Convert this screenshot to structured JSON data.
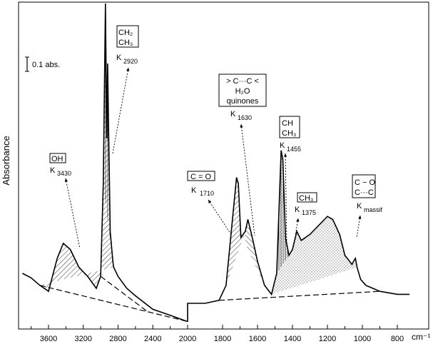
{
  "chart_data": {
    "type": "line",
    "title": "",
    "xlabel": "cm⁻¹",
    "ylabel": "Absorbance",
    "xlim": [
      3900,
      700
    ],
    "x_reversed": true,
    "x_ticks": [
      3600,
      3200,
      2800,
      2400,
      2000,
      1800,
      1600,
      1400,
      1200,
      1000,
      800
    ],
    "x_break_at": 2000,
    "scale_bar": "0.1 abs.",
    "spectrum": {
      "x": [
        3900,
        3800,
        3700,
        3600,
        3500,
        3430,
        3350,
        3250,
        3150,
        3050,
        3000,
        2970,
        2945,
        2930,
        2920,
        2910,
        2890,
        2860,
        2850,
        2800,
        2700,
        2600,
        2400,
        2200,
        2010,
        2000,
        1900,
        1820,
        1780,
        1740,
        1720,
        1710,
        1695,
        1670,
        1655,
        1630,
        1600,
        1560,
        1520,
        1490,
        1465,
        1455,
        1440,
        1420,
        1400,
        1375,
        1350,
        1300,
        1250,
        1200,
        1170,
        1130,
        1100,
        1060,
        1040,
        1030,
        1010,
        980,
        940,
        900,
        850,
        800,
        760,
        730
      ],
      "y": [
        0.1,
        0.085,
        0.06,
        0.04,
        0.15,
        0.2,
        0.18,
        0.12,
        0.09,
        0.05,
        0.09,
        0.4,
        1.0,
        0.55,
        0.8,
        0.6,
        0.24,
        0.14,
        0.12,
        0.09,
        0.05,
        0.025,
        -0.02,
        -0.04,
        -0.06,
        0.0,
        0.0,
        0.01,
        0.06,
        0.3,
        0.42,
        0.4,
        0.22,
        0.24,
        0.28,
        0.22,
        0.14,
        0.06,
        0.03,
        0.1,
        0.51,
        0.48,
        0.22,
        0.16,
        0.18,
        0.24,
        0.21,
        0.23,
        0.26,
        0.29,
        0.28,
        0.23,
        0.16,
        0.13,
        0.15,
        0.12,
        0.08,
        0.06,
        0.05,
        0.04,
        0.035,
        0.03,
        0.03,
        0.03
      ]
    },
    "annotations": [
      {
        "group": "OH",
        "lines": [
          "OH"
        ],
        "k_label": "K",
        "k_sub": "3430"
      },
      {
        "group": "CH2 CH3",
        "lines": [
          "CH₂",
          "CH₃"
        ],
        "k_label": "K",
        "k_sub": "2920"
      },
      {
        "group": "C=C H2O quinones",
        "lines": [
          "> C···C <",
          "H₂O",
          "quinones"
        ],
        "k_label": "K",
        "k_sub": "1630"
      },
      {
        "group": "CH CH3",
        "lines": [
          "CH",
          "CH₃"
        ],
        "k_label": "K",
        "k_sub": "1455"
      },
      {
        "group": "C=O",
        "lines": [
          "C = O"
        ],
        "k_label": "K",
        "k_sub": "1710"
      },
      {
        "group": "CH3",
        "lines": [
          "CH₃"
        ],
        "k_label": "K",
        "k_sub": "1375"
      },
      {
        "group": "C-O C-C",
        "lines": [
          "C − O",
          "C···C"
        ],
        "k_label": "K",
        "k_sub": "massif"
      }
    ],
    "grid": false,
    "legend": "none"
  }
}
